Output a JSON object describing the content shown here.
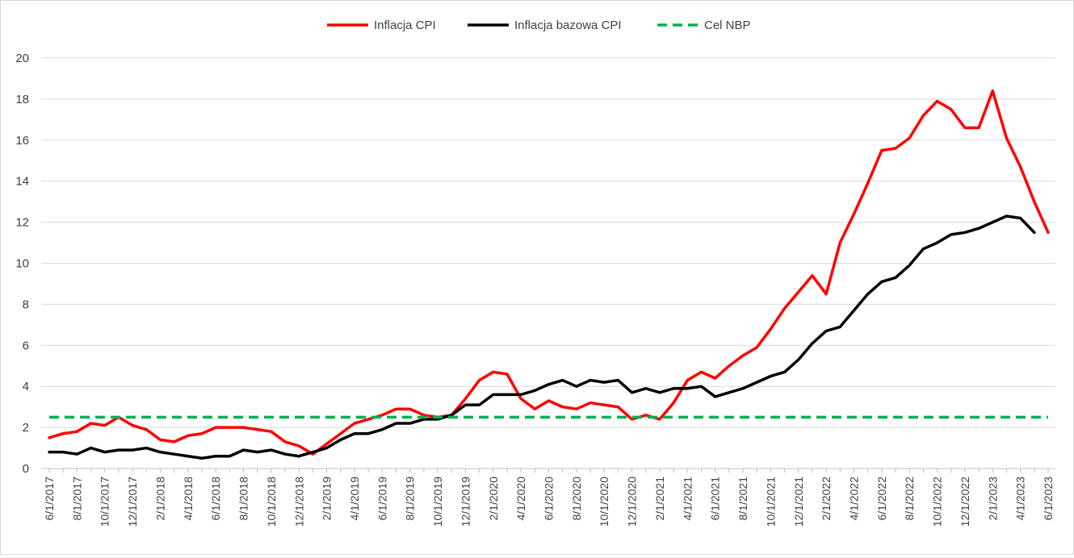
{
  "chart_data": {
    "type": "line",
    "title": "",
    "xlabel": "",
    "ylabel": "",
    "ylim": [
      0,
      20
    ],
    "yticks": [
      0,
      2,
      4,
      6,
      8,
      10,
      12,
      14,
      16,
      18,
      20
    ],
    "grid": "horizontal",
    "legend": "top-center",
    "x": [
      "6/1/2017",
      "7/1/2017",
      "8/1/2017",
      "9/1/2017",
      "10/1/2017",
      "11/1/2017",
      "12/1/2017",
      "1/1/2018",
      "2/1/2018",
      "3/1/2018",
      "4/1/2018",
      "5/1/2018",
      "6/1/2018",
      "7/1/2018",
      "8/1/2018",
      "9/1/2018",
      "10/1/2018",
      "11/1/2018",
      "12/1/2018",
      "1/1/2019",
      "2/1/2019",
      "3/1/2019",
      "4/1/2019",
      "5/1/2019",
      "6/1/2019",
      "7/1/2019",
      "8/1/2019",
      "9/1/2019",
      "10/1/2019",
      "11/1/2019",
      "12/1/2019",
      "1/1/2020",
      "2/1/2020",
      "3/1/2020",
      "4/1/2020",
      "5/1/2020",
      "6/1/2020",
      "7/1/2020",
      "8/1/2020",
      "9/1/2020",
      "10/1/2020",
      "11/1/2020",
      "12/1/2020",
      "1/1/2021",
      "2/1/2021",
      "3/1/2021",
      "4/1/2021",
      "5/1/2021",
      "6/1/2021",
      "7/1/2021",
      "8/1/2021",
      "9/1/2021",
      "10/1/2021",
      "11/1/2021",
      "12/1/2021",
      "1/1/2022",
      "2/1/2022",
      "3/1/2022",
      "4/1/2022",
      "5/1/2022",
      "6/1/2022",
      "7/1/2022",
      "8/1/2022",
      "9/1/2022",
      "10/1/2022",
      "11/1/2022",
      "12/1/2022",
      "1/1/2023",
      "2/1/2023",
      "3/1/2023",
      "4/1/2023",
      "5/1/2023",
      "6/1/2023"
    ],
    "x_tick_labels": [
      "6/1/2017",
      "8/1/2017",
      "10/1/2017",
      "12/1/2017",
      "2/1/2018",
      "4/1/2018",
      "6/1/2018",
      "8/1/2018",
      "10/1/2018",
      "12/1/2018",
      "2/1/2019",
      "4/1/2019",
      "6/1/2019",
      "8/1/2019",
      "10/1/2019",
      "12/1/2019",
      "2/1/2020",
      "4/1/2020",
      "6/1/2020",
      "8/1/2020",
      "10/1/2020",
      "12/1/2020",
      "2/1/2021",
      "4/1/2021",
      "6/1/2021",
      "8/1/2021",
      "10/1/2021",
      "12/1/2021",
      "2/1/2022",
      "4/1/2022",
      "6/1/2022",
      "8/1/2022",
      "10/1/2022",
      "12/1/2022",
      "2/1/2023",
      "4/1/2023",
      "6/1/2023"
    ],
    "series": [
      {
        "name": "Inflacja CPI",
        "color": "#ff0000",
        "dash": "solid",
        "values": [
          1.5,
          1.7,
          1.8,
          2.2,
          2.1,
          2.5,
          2.1,
          1.9,
          1.4,
          1.3,
          1.6,
          1.7,
          2.0,
          2.0,
          2.0,
          1.9,
          1.8,
          1.3,
          1.1,
          0.7,
          1.2,
          1.7,
          2.2,
          2.4,
          2.6,
          2.9,
          2.9,
          2.6,
          2.5,
          2.6,
          3.4,
          4.3,
          4.7,
          4.6,
          3.4,
          2.9,
          3.3,
          3.0,
          2.9,
          3.2,
          3.1,
          3.0,
          2.4,
          2.6,
          2.4,
          3.2,
          4.3,
          4.7,
          4.4,
          5.0,
          5.5,
          5.9,
          6.8,
          7.8,
          8.6,
          9.4,
          8.5,
          11.0,
          12.4,
          13.9,
          15.5,
          15.6,
          16.1,
          17.2,
          17.9,
          17.5,
          16.6,
          16.6,
          18.4,
          16.1,
          14.7,
          13.0,
          11.5
        ]
      },
      {
        "name": "Inflacja bazowa CPI",
        "color": "#000000",
        "dash": "solid",
        "values": [
          0.8,
          0.8,
          0.7,
          1.0,
          0.8,
          0.9,
          0.9,
          1.0,
          0.8,
          0.7,
          0.6,
          0.5,
          0.6,
          0.6,
          0.9,
          0.8,
          0.9,
          0.7,
          0.6,
          0.8,
          1.0,
          1.4,
          1.7,
          1.7,
          1.9,
          2.2,
          2.2,
          2.4,
          2.4,
          2.6,
          3.1,
          3.1,
          3.6,
          3.6,
          3.6,
          3.8,
          4.1,
          4.3,
          4.0,
          4.3,
          4.2,
          4.3,
          3.7,
          3.9,
          3.7,
          3.9,
          3.9,
          4.0,
          3.5,
          3.7,
          3.9,
          4.2,
          4.5,
          4.7,
          5.3,
          6.1,
          6.7,
          6.9,
          7.7,
          8.5,
          9.1,
          9.3,
          9.9,
          10.7,
          11.0,
          11.4,
          11.5,
          11.7,
          12.0,
          12.3,
          12.2,
          11.5,
          null
        ]
      },
      {
        "name": "Cel NBP",
        "color": "#00b050",
        "dash": "dashed",
        "values": [
          2.5,
          2.5,
          2.5,
          2.5,
          2.5,
          2.5,
          2.5,
          2.5,
          2.5,
          2.5,
          2.5,
          2.5,
          2.5,
          2.5,
          2.5,
          2.5,
          2.5,
          2.5,
          2.5,
          2.5,
          2.5,
          2.5,
          2.5,
          2.5,
          2.5,
          2.5,
          2.5,
          2.5,
          2.5,
          2.5,
          2.5,
          2.5,
          2.5,
          2.5,
          2.5,
          2.5,
          2.5,
          2.5,
          2.5,
          2.5,
          2.5,
          2.5,
          2.5,
          2.5,
          2.5,
          2.5,
          2.5,
          2.5,
          2.5,
          2.5,
          2.5,
          2.5,
          2.5,
          2.5,
          2.5,
          2.5,
          2.5,
          2.5,
          2.5,
          2.5,
          2.5,
          2.5,
          2.5,
          2.5,
          2.5,
          2.5,
          2.5,
          2.5,
          2.5,
          2.5,
          2.5,
          2.5,
          2.5
        ]
      }
    ],
    "colors": {
      "gridline": "#d9d9d9",
      "axis": "#bfbfbf",
      "text": "#404040"
    }
  }
}
